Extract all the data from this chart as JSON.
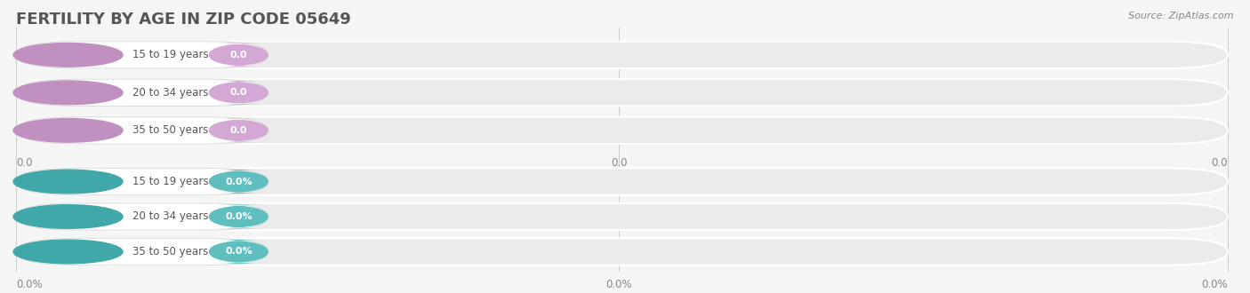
{
  "title": "FERTILITY BY AGE IN ZIP CODE 05649",
  "source": "Source: ZipAtlas.com",
  "background_color": "#f5f5f5",
  "categories": [
    "15 to 19 years",
    "20 to 34 years",
    "35 to 50 years"
  ],
  "count_values": [
    0.0,
    0.0,
    0.0
  ],
  "pct_values": [
    0.0,
    0.0,
    0.0
  ],
  "count_bar_color": "#d4a8d4",
  "pct_bar_color": "#5fbfbf",
  "count_circle_color": "#c090c0",
  "pct_circle_color": "#40a8a8",
  "label_text_color": "#555555",
  "value_text_color": "#ffffff",
  "title_color": "#555555",
  "title_fontsize": 13,
  "source_color": "#888888",
  "fig_width": 14.06,
  "fig_height": 3.3
}
